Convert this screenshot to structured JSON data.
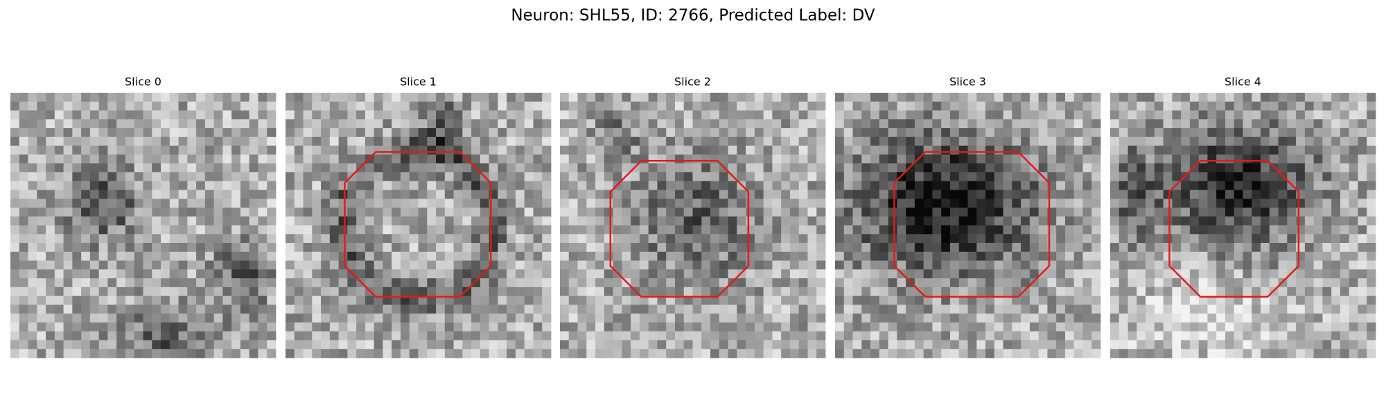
{
  "header": {
    "title": "Neuron: SHL55, ID: 2766, Predicted Label: DV"
  },
  "panels": [
    {
      "title": "Slice 0"
    },
    {
      "title": "Slice 1"
    },
    {
      "title": "Slice 2"
    },
    {
      "title": "Slice 3"
    },
    {
      "title": "Slice 4"
    }
  ]
}
